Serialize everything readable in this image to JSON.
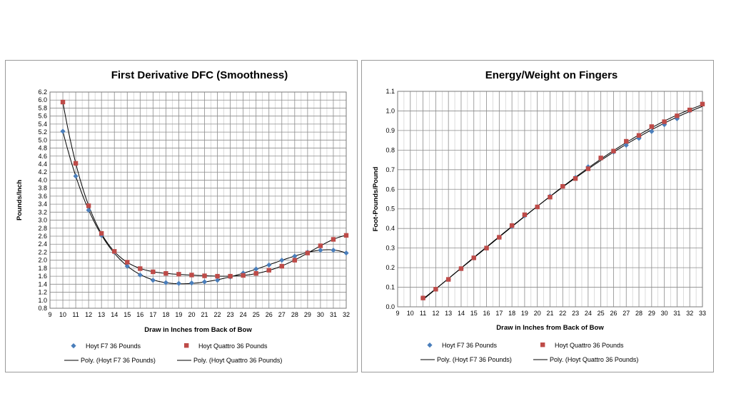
{
  "chart_data": [
    {
      "type": "scatter",
      "title": "First Derivative DFC (Smoothness)",
      "xlabel": "Draw in Inches from Back of Bow",
      "ylabel": "Pounds/Inch",
      "xlim": [
        9,
        32
      ],
      "ylim": [
        0.8,
        6.2
      ],
      "xticks": [
        "9",
        "10",
        "11",
        "12",
        "13",
        "14",
        "15",
        "16",
        "17",
        "18",
        "19",
        "20",
        "21",
        "22",
        "23",
        "24",
        "25",
        "26",
        "27",
        "28",
        "29",
        "30",
        "31",
        "32"
      ],
      "yticks": [
        "0.8",
        "1.0",
        "1.2",
        "1.4",
        "1.6",
        "1.8",
        "2.0",
        "2.2",
        "2.4",
        "2.6",
        "2.8",
        "3.0",
        "3.2",
        "3.4",
        "3.6",
        "3.8",
        "4.0",
        "4.2",
        "4.4",
        "4.6",
        "4.8",
        "5.0",
        "5.2",
        "5.4",
        "5.6",
        "5.8",
        "6.0",
        "6.2"
      ],
      "grid": true,
      "legend_position": "bottom",
      "series": [
        {
          "name": "Hoyt F7 36 Pounds",
          "marker": "diamond",
          "color": "#4a7ebb",
          "x": [
            10,
            11,
            12,
            13,
            14,
            15,
            16,
            17,
            18,
            19,
            20,
            21,
            22,
            23,
            24,
            25,
            26,
            27,
            28,
            29,
            30,
            31,
            32
          ],
          "y": [
            5.22,
            4.1,
            3.25,
            2.62,
            2.2,
            1.85,
            1.63,
            1.5,
            1.44,
            1.42,
            1.43,
            1.46,
            1.5,
            1.58,
            1.68,
            1.78,
            1.88,
            2.0,
            2.1,
            2.2,
            2.25,
            2.25,
            2.18
          ]
        },
        {
          "name": "Hoyt Quattro 36 Pounds",
          "marker": "square",
          "color": "#be4b48",
          "x": [
            10,
            11,
            12,
            13,
            14,
            15,
            16,
            17,
            18,
            19,
            20,
            21,
            22,
            23,
            24,
            25,
            26,
            27,
            28,
            29,
            30,
            31,
            32
          ],
          "y": [
            5.95,
            4.42,
            3.36,
            2.67,
            2.22,
            1.95,
            1.79,
            1.71,
            1.67,
            1.65,
            1.63,
            1.61,
            1.6,
            1.6,
            1.62,
            1.67,
            1.75,
            1.85,
            2.0,
            2.18,
            2.36,
            2.52,
            2.62
          ]
        },
        {
          "name": "Poly. (Hoyt F7 36 Pounds)",
          "type": "trendline",
          "of": "Hoyt F7 36 Pounds",
          "color": "#000000"
        },
        {
          "name": "Poly. (Hoyt Quattro 36 Pounds)",
          "type": "trendline",
          "of": "Hoyt Quattro 36 Pounds",
          "color": "#000000"
        }
      ]
    },
    {
      "type": "scatter",
      "title": "Energy/Weight on Fingers",
      "xlabel": "Draw in Inches from Back of Bow",
      "ylabel": "Foot-Pounds/Pound",
      "xlim": [
        9,
        33
      ],
      "ylim": [
        0,
        1.1
      ],
      "xticks": [
        "9",
        "10",
        "11",
        "12",
        "13",
        "14",
        "15",
        "16",
        "17",
        "18",
        "19",
        "20",
        "21",
        "22",
        "23",
        "24",
        "25",
        "26",
        "27",
        "28",
        "29",
        "30",
        "31",
        "32",
        "33"
      ],
      "yticks": [
        "0.0",
        "0.1",
        "0.2",
        "0.3",
        "0.4",
        "0.5",
        "0.6",
        "0.7",
        "0.8",
        "0.9",
        "1.0",
        "1.1"
      ],
      "grid": true,
      "legend_position": "bottom",
      "series": [
        {
          "name": "Hoyt F7 36 Pounds",
          "marker": "diamond",
          "color": "#4a7ebb",
          "x": [
            11,
            12,
            13,
            14,
            15,
            16,
            17,
            18,
            19,
            20,
            21,
            22,
            23,
            24,
            25,
            26,
            27,
            28,
            29,
            30,
            31,
            32,
            33
          ],
          "y": [
            0.045,
            0.09,
            0.14,
            0.195,
            0.25,
            0.3,
            0.355,
            0.41,
            0.465,
            0.51,
            0.565,
            0.615,
            0.66,
            0.715,
            0.76,
            0.79,
            0.825,
            0.86,
            0.895,
            0.93,
            0.96,
            1.0,
            1.035
          ]
        },
        {
          "name": "Hoyt Quattro 36 Pounds",
          "marker": "square",
          "color": "#be4b48",
          "x": [
            11,
            12,
            13,
            14,
            15,
            16,
            17,
            18,
            19,
            20,
            21,
            22,
            23,
            24,
            25,
            26,
            27,
            28,
            29,
            30,
            31,
            32,
            33
          ],
          "y": [
            0.045,
            0.09,
            0.14,
            0.195,
            0.25,
            0.3,
            0.355,
            0.415,
            0.47,
            0.51,
            0.56,
            0.615,
            0.655,
            0.705,
            0.76,
            0.795,
            0.845,
            0.875,
            0.92,
            0.945,
            0.975,
            1.005,
            1.035
          ]
        },
        {
          "name": "Poly. (Hoyt F7 36 Pounds)",
          "type": "trendline",
          "of": "Hoyt F7 36 Pounds",
          "color": "#000000"
        },
        {
          "name": "Poly. (Hoyt Quattro 36 Pounds)",
          "type": "trendline",
          "of": "Hoyt Quattro 36 Pounds",
          "color": "#000000"
        }
      ]
    }
  ]
}
